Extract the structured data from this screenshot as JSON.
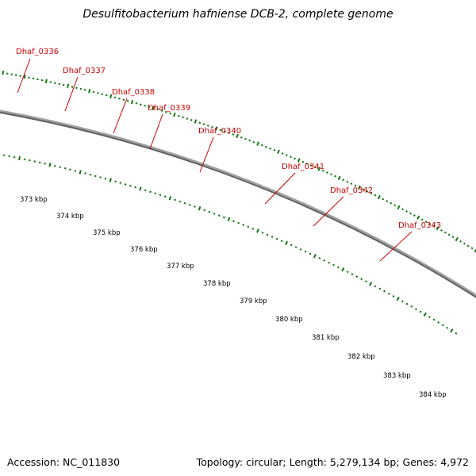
{
  "title": "Desulfitobacterium hafniense DCB-2, complete genome",
  "footer": {
    "accession": "Accession: NC_011830",
    "summary": "Topology: circular; Length: 5,279,134 bp; Genes: 4,972"
  },
  "colors": {
    "gene_label": "#cc0000",
    "forward_arrow": "#ff0000",
    "tick": "#117711",
    "backbone": "#808080"
  },
  "genes": [
    {
      "label": "Dhaf_0336",
      "color": "#3f3f87"
    },
    {
      "label": "Dhaf_0337",
      "color": "#4f82b8"
    },
    {
      "label": "Dhaf_0338",
      "color": "#3f3f87"
    },
    {
      "label": "Dhaf_0339",
      "color": "#4f82b8"
    },
    {
      "label": "Dhaf_0340",
      "color": "#22ee99"
    },
    {
      "label": "Dhaf_0341",
      "color": "#22ee99"
    },
    {
      "label": "Dhaf_0342",
      "color": ""
    },
    {
      "label": "Dhaf_0343",
      "color": "#3f3f87"
    }
  ],
  "extra_genes": [
    {
      "color": "#1a1aee"
    },
    {
      "color": "#22eeff"
    }
  ],
  "scale_labels": [
    "373 kbp",
    "374 kbp",
    "375 kbp",
    "376 kbp",
    "377 kbp",
    "378 kbp",
    "379 kbp",
    "380 kbp",
    "381 kbp",
    "382 kbp",
    "383 kbp",
    "384 kbp"
  ]
}
